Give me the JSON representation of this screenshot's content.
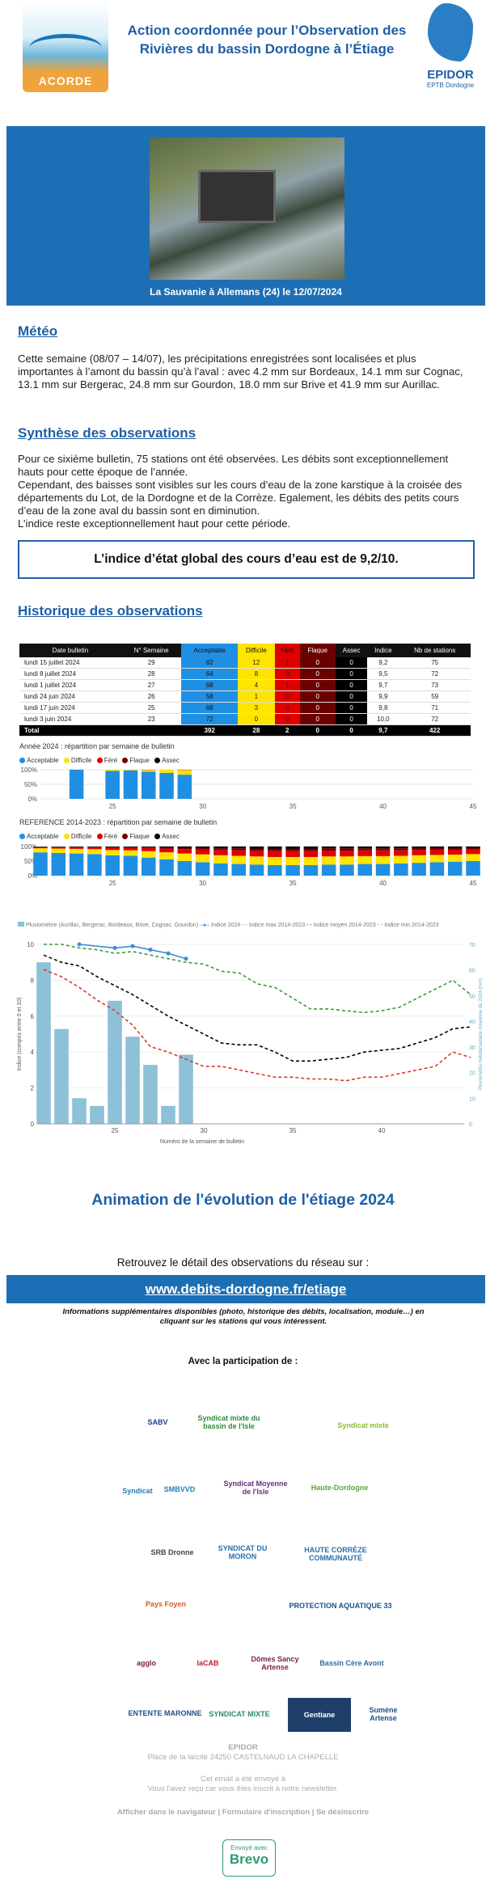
{
  "header": {
    "title": "Action coordonnée pour l’Observation des Rivières du bassin Dordogne à l’Étiage",
    "acorde_logo": "ACORDE",
    "epidor_logo": "EPIDOR",
    "epidor_sub": "EPTB Dordogne"
  },
  "banner": {
    "caption": "La Sauvanie à Allemans (24) le 12/07/2024"
  },
  "meteo": {
    "heading": "Météo",
    "text": "Cette semaine (08/07 – 14/07), les précipitations enregistrées sont localisées et plus importantes à l’amont du bassin qu’à l’aval : avec 4.2 mm sur Bordeaux, 14.1 mm sur Cognac, 13.1 mm sur Bergerac, 24.8 mm sur Gourdon, 18.0 mm sur Brive et 41.9 mm sur Aurillac."
  },
  "synthese": {
    "heading": "Synthèse des observations",
    "p1": "Pour ce sixième bulletin, 75 stations ont été observées. Les débits sont exceptionnellement hauts pour cette époque de l’année.",
    "p2": "Cependant, des baisses sont visibles sur les cours d’eau de la zone karstique à la croisée des départements du Lot, de la Dordogne et de la Corrèze. Egalement, les débits des petits cours d’eau de la zone aval du bassin sont en diminution.",
    "p3": "L’indice reste exceptionnellement haut pour cette période.",
    "index_box": "L’indice d’état global des cours d’eau est de 9,2/10."
  },
  "historique": {
    "heading": "Historique des observations",
    "columns": [
      "Date bulletin",
      "N° Semaine",
      "Acceptable",
      "Difficile",
      "Féré",
      "Flaque",
      "Assec",
      "Indice",
      "Nb de stations"
    ],
    "rows": [
      [
        "lundi 15 juillet 2024",
        "29",
        "62",
        "12",
        "1",
        "0",
        "0",
        "9,2",
        "75"
      ],
      [
        "lundi 8 juillet 2024",
        "28",
        "64",
        "8",
        "0",
        "0",
        "0",
        "9,5",
        "72"
      ],
      [
        "lundi 1 juillet 2024",
        "27",
        "68",
        "4",
        "1",
        "0",
        "0",
        "9,7",
        "73"
      ],
      [
        "lundi 24 juin 2024",
        "26",
        "58",
        "1",
        "0",
        "0",
        "0",
        "9,9",
        "59"
      ],
      [
        "lundi 17 juin 2024",
        "25",
        "68",
        "3",
        "0",
        "0",
        "0",
        "9,8",
        "71"
      ],
      [
        "lundi 3 juin 2024",
        "23",
        "72",
        "0",
        "0",
        "0",
        "0",
        "10,0",
        "72"
      ]
    ],
    "total": [
      "Total",
      "",
      "392",
      "28",
      "2",
      "0",
      "0",
      "9,7",
      "422"
    ]
  },
  "chart_data": [
    {
      "type": "bar",
      "title": "Année 2024 : répartition par semaine de bulletin",
      "legend": [
        "Acceptable",
        "Difficile",
        "Féré",
        "Flaque",
        "Assec"
      ],
      "x": [
        23,
        25,
        26,
        27,
        28,
        29
      ],
      "xticks": [
        25,
        30,
        35,
        40,
        45
      ],
      "yticks": [
        "100%",
        "50%",
        "0%"
      ],
      "series": [
        {
          "name": "Acceptable",
          "values": [
            100,
            96,
            98,
            93,
            89,
            83
          ]
        },
        {
          "name": "Difficile",
          "values": [
            0,
            4,
            2,
            5,
            11,
            16
          ]
        },
        {
          "name": "Féré",
          "values": [
            0,
            0,
            0,
            1,
            0,
            1
          ]
        }
      ],
      "xlim": [
        21,
        45
      ]
    },
    {
      "type": "bar",
      "title": "REFERENCE 2014-2023 : répartition par semaine de bulletin",
      "legend": [
        "Acceptable",
        "Difficile",
        "Féré",
        "Flaque",
        "Assec"
      ],
      "x": [
        21,
        22,
        23,
        24,
        25,
        26,
        27,
        28,
        29,
        30,
        31,
        32,
        33,
        34,
        35,
        36,
        37,
        38,
        39,
        40,
        41,
        42,
        43,
        44,
        45
      ],
      "xticks": [
        25,
        30,
        35,
        40,
        45
      ],
      "yticks": [
        "100%",
        "50%",
        "0%"
      ],
      "series": [
        {
          "name": "Acceptable",
          "values": [
            80,
            78,
            76,
            74,
            70,
            68,
            62,
            56,
            50,
            46,
            42,
            40,
            38,
            36,
            36,
            36,
            38,
            38,
            40,
            40,
            42,
            44,
            46,
            48,
            50
          ]
        },
        {
          "name": "Difficile",
          "values": [
            14,
            15,
            16,
            17,
            18,
            19,
            22,
            24,
            26,
            27,
            28,
            28,
            28,
            28,
            28,
            28,
            28,
            28,
            27,
            27,
            26,
            26,
            25,
            24,
            24
          ]
        },
        {
          "name": "Féré",
          "values": [
            4,
            5,
            5,
            6,
            8,
            9,
            11,
            13,
            15,
            17,
            18,
            19,
            20,
            21,
            21,
            21,
            20,
            20,
            20,
            20,
            19,
            18,
            18,
            17,
            16
          ]
        },
        {
          "name": "Flaque",
          "values": [
            1,
            1,
            2,
            2,
            2,
            2,
            3,
            4,
            5,
            5,
            6,
            7,
            7,
            8,
            8,
            8,
            8,
            8,
            7,
            7,
            7,
            7,
            6,
            6,
            6
          ]
        },
        {
          "name": "Assec",
          "values": [
            1,
            1,
            1,
            1,
            2,
            2,
            2,
            3,
            4,
            5,
            6,
            6,
            7,
            7,
            7,
            7,
            6,
            6,
            6,
            6,
            6,
            5,
            5,
            5,
            4
          ]
        }
      ],
      "xlim": [
        21,
        45
      ]
    },
    {
      "type": "line",
      "legend": [
        "Pluviométrie (Aurillac, Bergerac, Bordeaux, Brive, Cognac, Gourdon)",
        "Indice 2024",
        "Indice max 2014-2023",
        "Indice moyen 2014-2023",
        "Indice min 2014-2023"
      ],
      "xlabel": "Numéro de la semaine de bulletin",
      "ylabel": "Indice (compris entre 0 et 10)",
      "y2label": "Pluviométrie hebdomadaire moyenne de 2024 (mm)",
      "xticks": [
        25,
        30,
        35,
        40
      ],
      "yticks": [
        0,
        2,
        4,
        6,
        8,
        10
      ],
      "y2ticks": [
        0,
        10,
        20,
        30,
        40,
        50,
        60,
        70
      ],
      "rain": {
        "x": [
          21,
          22,
          23,
          24,
          25,
          26,
          27,
          28,
          29
        ],
        "values": [
          63,
          37,
          10,
          7,
          48,
          34,
          23,
          7,
          27
        ]
      },
      "index2024": {
        "x": [
          23,
          25,
          26,
          27,
          28,
          29
        ],
        "values": [
          10.0,
          9.8,
          9.9,
          9.7,
          9.5,
          9.2
        ]
      },
      "max": {
        "x": [
          21,
          22,
          23,
          24,
          25,
          26,
          27,
          28,
          29,
          30,
          31,
          32,
          33,
          34,
          35,
          36,
          37,
          38,
          39,
          40,
          41,
          42,
          43,
          44,
          45
        ],
        "values": [
          10,
          10,
          9.8,
          9.7,
          9.5,
          9.6,
          9.4,
          9.2,
          9.0,
          8.9,
          8.5,
          8.4,
          7.8,
          7.6,
          7.0,
          6.4,
          6.4,
          6.3,
          6.2,
          6.3,
          6.5,
          7.0,
          7.5,
          8.0,
          7.2
        ]
      },
      "mean": {
        "x": [
          21,
          22,
          23,
          24,
          25,
          26,
          27,
          28,
          29,
          30,
          31,
          32,
          33,
          34,
          35,
          36,
          37,
          38,
          39,
          40,
          41,
          42,
          43,
          44,
          45
        ],
        "values": [
          9.4,
          9.0,
          8.8,
          8.2,
          7.7,
          7.2,
          6.6,
          6.0,
          5.5,
          5.0,
          4.5,
          4.4,
          4.4,
          4.0,
          3.5,
          3.5,
          3.6,
          3.7,
          4.0,
          4.1,
          4.2,
          4.5,
          4.8,
          5.3,
          5.4
        ]
      },
      "min": {
        "x": [
          21,
          22,
          23,
          24,
          25,
          26,
          27,
          28,
          29,
          30,
          31,
          32,
          33,
          34,
          35,
          36,
          37,
          38,
          39,
          40,
          41,
          42,
          43,
          44,
          45
        ],
        "values": [
          8.6,
          8.2,
          7.6,
          6.9,
          6.3,
          5.5,
          4.3,
          4.0,
          3.6,
          3.2,
          3.2,
          3.0,
          2.8,
          2.6,
          2.6,
          2.5,
          2.5,
          2.4,
          2.6,
          2.6,
          2.8,
          3.0,
          3.2,
          4.0,
          3.7
        ]
      },
      "xlim": [
        21,
        45
      ],
      "ylim": [
        0,
        10
      ],
      "y2lim": [
        0,
        70
      ]
    }
  ],
  "animation": {
    "title": "Animation de l'évolution de l'étiage 2024"
  },
  "detail": {
    "text": "Retrouvez le détail des observations du réseau sur :",
    "link": "www.debits-dordogne.fr/etiage",
    "info": "Informations supplémentaires disponibles (photo, historique des débits, localisation, module…) en cliquant sur les stations qui vous intéressent."
  },
  "partners": {
    "heading": "Avec la participation de :",
    "logos": [
      {
        "text": "SABV",
        "color": "#1d3f8a"
      },
      {
        "text": "Syndicat mixte du bassin de l'Isle",
        "color": "#2a8c3b"
      },
      {
        "text": "",
        "color": "#2a7ec3"
      },
      {
        "text": "Syndicat mixte",
        "color": "#8cbc2b"
      },
      {
        "text": "Syndicat",
        "color": "#1f7fb5"
      },
      {
        "text": "SMBVVD",
        "color": "#1f7fb5"
      },
      {
        "text": "Syndicat Moyenne de l'Isle",
        "color": "#6b2d7a"
      },
      {
        "text": "Haute-Dordogne",
        "color": "#5aa83a"
      },
      {
        "text": "SRB Dronne",
        "color": "#444"
      },
      {
        "text": "SYNDICAT DU MORON",
        "color": "#2a6fa8"
      },
      {
        "text": "HAUTE CORRÈZE COMMUNAUTÉ",
        "color": "#2a6fa8"
      },
      {
        "text": "Pays Foyen",
        "color": "#d65a2a"
      },
      {
        "text": "",
        "color": "#2a8c6a"
      },
      {
        "text": "PROTECTION AQUATIQUE 33",
        "color": "#1d4f8a"
      },
      {
        "text": "agglo",
        "color": "#7a1d4f"
      },
      {
        "text": "laCAB",
        "color": "#c01f2a"
      },
      {
        "text": "Dômes Sancy Artense",
        "color": "#7a1d4f"
      },
      {
        "text": "Bassin Cère Avont",
        "color": "#2a6fa8"
      },
      {
        "text": "ENTENTE MARONNE",
        "color": "#1d4f8a"
      },
      {
        "text": "SYNDICAT MIXTE",
        "color": "#2a8c6a"
      },
      {
        "text": "Gentiane",
        "color": "#ffffff"
      },
      {
        "text": "Sumène Artense",
        "color": "#1d4f8a"
      }
    ]
  },
  "footer": {
    "org": "EPIDOR",
    "address": "Place de la laïcité 24250 CASTELNAUD LA CHAPELLE",
    "sent": "Cet email a été envoyé à",
    "reason": "Vous l'avez reçu car vous êtes inscrit à notre newsletter.",
    "links": "Afficher dans le navigateur | Formulaire d'inscription | Se désinscrire",
    "brevo_sent": "Envoyé avec",
    "brevo": "Brevo"
  }
}
